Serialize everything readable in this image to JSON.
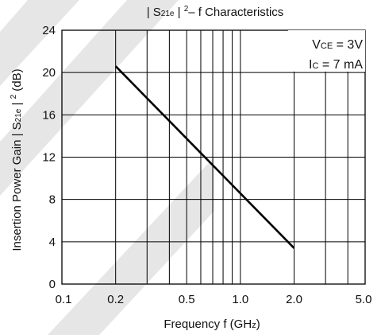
{
  "chart_data": {
    "type": "line",
    "title": {
      "pre": "| S",
      "sub": "21e",
      "mid": " | ",
      "sup": "2",
      "post": "– f Characteristics"
    },
    "xlabel": {
      "pre": "Frequency f (GH",
      "small": "z",
      "post": ")"
    },
    "ylabel": {
      "pre": "Insertion Power Gain | S",
      "sub": "21e",
      "mid": " | ",
      "sup": "2",
      "post": " (dB)"
    },
    "x_scale": "log",
    "xlim": [
      0.1,
      5.0
    ],
    "ylim": [
      0,
      24
    ],
    "x_ticks": [
      0.1,
      0.2,
      0.5,
      1.0,
      2.0,
      5.0
    ],
    "x_tick_labels": [
      "0.1",
      "0.2",
      "0.5",
      "1.0",
      "2.0",
      "5.0"
    ],
    "x_minor_grid": [
      0.3,
      0.4,
      0.6,
      0.7,
      0.8,
      0.9,
      3.0,
      4.0
    ],
    "y_ticks": [
      0,
      4,
      8,
      12,
      16,
      20,
      24
    ],
    "y_tick_labels": [
      "0",
      "4",
      "8",
      "12",
      "16",
      "20",
      "24"
    ],
    "grid": true,
    "series": [
      {
        "x": [
          0.2,
          2.0
        ],
        "y": [
          20.6,
          3.4
        ],
        "color": "#000000"
      }
    ],
    "conditions": {
      "vce": {
        "pre": "V",
        "sub": "CE",
        "post": " = 3V"
      },
      "ic": {
        "pre": "I",
        "sub": "C",
        "post": " = 7 mA"
      }
    }
  }
}
